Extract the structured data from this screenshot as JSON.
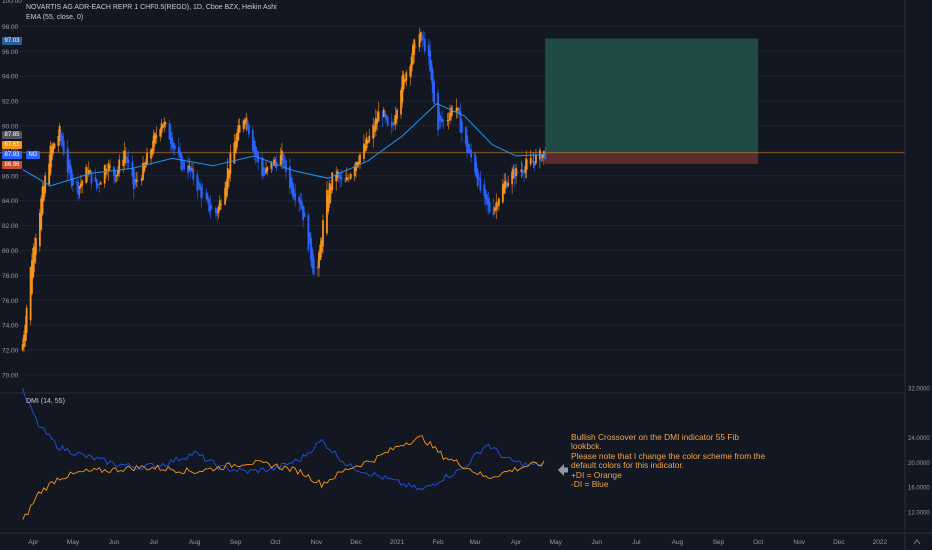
{
  "header": {
    "symbol_line": "NOVARTIS AG ADR-EACH REPR 1 CHF0.5(REGD), 1D, Cboe BZX, Heikin Ashi",
    "ema_line": "EMA (55, close, 0)",
    "dmi_line": "DMI (14, 55)"
  },
  "price_axis": {
    "top_partial": "100.00",
    "labels": [
      "98.00",
      "96.00",
      "94.00",
      "92.00",
      "90.00",
      "88.00",
      "86.00",
      "84.00",
      "82.00",
      "80.00",
      "78.00",
      "76.00",
      "74.00",
      "72.00",
      "70.00"
    ]
  },
  "badges": [
    {
      "text": "97.03",
      "color": "#2a5c9a"
    },
    {
      "text": "87.85",
      "color": "#50535e"
    },
    {
      "text": "87.61",
      "color": "#f7931a"
    },
    {
      "text": "87.83",
      "color": "#2962ff"
    },
    {
      "text": "NG",
      "color": "#2962ff"
    },
    {
      "text": "86.96",
      "color": "#c94f2b"
    }
  ],
  "dmi_axis": {
    "labels": [
      "32.0000",
      "24.0000",
      "20.0000",
      "16.0000",
      "12.0000"
    ]
  },
  "time_axis": {
    "labels": [
      "Apr",
      "May",
      "Jun",
      "Jul",
      "Aug",
      "Sep",
      "Oct",
      "Nov",
      "Dec",
      "2021",
      "Feb",
      "Mar",
      "Apr",
      "May",
      "Jun",
      "Jul",
      "Aug",
      "Sep",
      "Oct",
      "Nov",
      "Dec",
      "2022"
    ]
  },
  "annotation": {
    "arrow_icon": "left-arrow-icon",
    "lines": [
      "Bullish Crossover on the DMI indicator 55 Fib",
      "lookbck.",
      "Please note that I change the color scheme from the",
      "default colors for this indicator.",
      "+DI = Orange",
      "-DI = Blue"
    ]
  },
  "colors": {
    "background": "#131722",
    "up": "#f7931a",
    "down": "#2962ff",
    "ema": "#2196f3",
    "plus_di": "#f7931a",
    "minus_di": "#1e53e5",
    "target_zone": "#1f4a45",
    "stop_zone": "#5c2b2f",
    "annotation_text": "#f0a44a"
  },
  "chart_data": [
    {
      "type": "candlestick",
      "chart_style": "Heikin Ashi",
      "interval": "1D",
      "ylim": [
        69,
        100.5
      ],
      "x_range": [
        "2020-03-25",
        "2022-01-20"
      ],
      "price_path": [
        {
          "x": "2020-03-24",
          "y": 72.5
        },
        {
          "x": "2020-03-31",
          "y": 79.5
        },
        {
          "x": "2020-04-07",
          "y": 84.0
        },
        {
          "x": "2020-04-14",
          "y": 88.0
        },
        {
          "x": "2020-04-21",
          "y": 89.5
        },
        {
          "x": "2020-04-28",
          "y": 86.0
        },
        {
          "x": "2020-05-05",
          "y": 85.0
        },
        {
          "x": "2020-05-12",
          "y": 86.5
        },
        {
          "x": "2020-05-19",
          "y": 85.0
        },
        {
          "x": "2020-05-26",
          "y": 87.0
        },
        {
          "x": "2020-06-02",
          "y": 86.0
        },
        {
          "x": "2020-06-09",
          "y": 88.0
        },
        {
          "x": "2020-06-16",
          "y": 85.0
        },
        {
          "x": "2020-06-23",
          "y": 86.5
        },
        {
          "x": "2020-06-30",
          "y": 88.5
        },
        {
          "x": "2020-07-07",
          "y": 90.5
        },
        {
          "x": "2020-07-14",
          "y": 89.0
        },
        {
          "x": "2020-07-21",
          "y": 87.0
        },
        {
          "x": "2020-07-28",
          "y": 86.5
        },
        {
          "x": "2020-08-04",
          "y": 85.0
        },
        {
          "x": "2020-08-11",
          "y": 83.5
        },
        {
          "x": "2020-08-18",
          "y": 83.0
        },
        {
          "x": "2020-08-25",
          "y": 86.0
        },
        {
          "x": "2020-09-01",
          "y": 89.0
        },
        {
          "x": "2020-09-08",
          "y": 91.0
        },
        {
          "x": "2020-09-15",
          "y": 88.0
        },
        {
          "x": "2020-09-22",
          "y": 86.0
        },
        {
          "x": "2020-09-29",
          "y": 87.0
        },
        {
          "x": "2020-10-06",
          "y": 87.5
        },
        {
          "x": "2020-10-13",
          "y": 85.0
        },
        {
          "x": "2020-10-20",
          "y": 84.0
        },
        {
          "x": "2020-10-27",
          "y": 80.0
        },
        {
          "x": "2020-11-01",
          "y": 77.5
        },
        {
          "x": "2020-11-08",
          "y": 84.0
        },
        {
          "x": "2020-11-15",
          "y": 86.5
        },
        {
          "x": "2020-11-22",
          "y": 85.0
        },
        {
          "x": "2020-11-29",
          "y": 87.0
        },
        {
          "x": "2020-12-06",
          "y": 88.0
        },
        {
          "x": "2020-12-13",
          "y": 89.5
        },
        {
          "x": "2020-12-20",
          "y": 91.5
        },
        {
          "x": "2020-12-27",
          "y": 89.0
        },
        {
          "x": "2021-01-03",
          "y": 93.0
        },
        {
          "x": "2021-01-10",
          "y": 95.0
        },
        {
          "x": "2021-01-17",
          "y": 97.5
        },
        {
          "x": "2021-01-24",
          "y": 96.0
        },
        {
          "x": "2021-01-31",
          "y": 90.0
        },
        {
          "x": "2021-02-07",
          "y": 90.5
        },
        {
          "x": "2021-02-14",
          "y": 92.0
        },
        {
          "x": "2021-02-21",
          "y": 88.5
        },
        {
          "x": "2021-02-28",
          "y": 87.0
        },
        {
          "x": "2021-03-07",
          "y": 84.0
        },
        {
          "x": "2021-03-14",
          "y": 83.0
        },
        {
          "x": "2021-03-21",
          "y": 85.0
        },
        {
          "x": "2021-03-28",
          "y": 86.0
        },
        {
          "x": "2021-04-04",
          "y": 86.5
        },
        {
          "x": "2021-04-11",
          "y": 87.0
        },
        {
          "x": "2021-04-18",
          "y": 87.5
        },
        {
          "x": "2021-04-23",
          "y": 87.85
        }
      ],
      "ema": [
        {
          "x": "2020-03-24",
          "y": 86.5
        },
        {
          "x": "2020-04-14",
          "y": 85.2
        },
        {
          "x": "2020-05-15",
          "y": 86.2
        },
        {
          "x": "2020-06-15",
          "y": 86.6
        },
        {
          "x": "2020-07-15",
          "y": 87.4
        },
        {
          "x": "2020-08-15",
          "y": 86.8
        },
        {
          "x": "2020-09-15",
          "y": 87.6
        },
        {
          "x": "2020-10-15",
          "y": 86.4
        },
        {
          "x": "2020-11-10",
          "y": 85.8
        },
        {
          "x": "2020-12-10",
          "y": 87.2
        },
        {
          "x": "2021-01-05",
          "y": 89.2
        },
        {
          "x": "2021-01-31",
          "y": 91.8
        },
        {
          "x": "2021-02-21",
          "y": 90.8
        },
        {
          "x": "2021-03-14",
          "y": 88.5
        },
        {
          "x": "2021-04-01",
          "y": 87.6
        },
        {
          "x": "2021-04-23",
          "y": 87.7
        }
      ],
      "price_line": 87.85,
      "position": {
        "start": "2021-04-23",
        "end": "2021-10-01",
        "entry": 87.85,
        "target": 97.03,
        "stop": 86.96
      }
    },
    {
      "type": "line",
      "indicator": "DMI",
      "ylim": [
        9,
        33
      ],
      "series": [
        {
          "name": "+DI",
          "x": [
            "2020-03-24",
            "2020-04-05",
            "2020-04-20",
            "2020-05-10",
            "2020-06-01",
            "2020-06-20",
            "2020-07-10",
            "2020-08-01",
            "2020-08-20",
            "2020-09-10",
            "2020-10-01",
            "2020-10-20",
            "2020-11-05",
            "2020-11-25",
            "2020-12-15",
            "2021-01-05",
            "2021-01-20",
            "2021-02-05",
            "2021-02-20",
            "2021-03-10",
            "2021-03-25",
            "2021-04-10",
            "2021-04-23"
          ],
          "values": [
            10.5,
            15.0,
            17.5,
            18.5,
            18.8,
            19.2,
            19.0,
            18.5,
            19.2,
            20.0,
            19.5,
            18.5,
            16.5,
            19.0,
            20.5,
            23.0,
            24.0,
            21.0,
            19.5,
            17.5,
            18.5,
            19.5,
            19.8
          ]
        },
        {
          "name": "-DI",
          "x": [
            "2020-03-24",
            "2020-04-05",
            "2020-04-20",
            "2020-05-10",
            "2020-06-01",
            "2020-06-20",
            "2020-07-10",
            "2020-08-01",
            "2020-08-20",
            "2020-09-10",
            "2020-10-01",
            "2020-10-20",
            "2020-11-05",
            "2020-11-25",
            "2020-12-15",
            "2021-01-05",
            "2021-01-20",
            "2021-02-05",
            "2021-02-20",
            "2021-03-10",
            "2021-03-25",
            "2021-04-10",
            "2021-04-23"
          ],
          "values": [
            31.5,
            26.0,
            22.5,
            21.0,
            19.8,
            19.2,
            19.8,
            21.5,
            19.2,
            18.5,
            19.0,
            20.5,
            23.5,
            19.5,
            18.0,
            16.5,
            15.5,
            17.5,
            19.0,
            23.0,
            20.5,
            19.5,
            19.8
          ]
        }
      ]
    }
  ]
}
